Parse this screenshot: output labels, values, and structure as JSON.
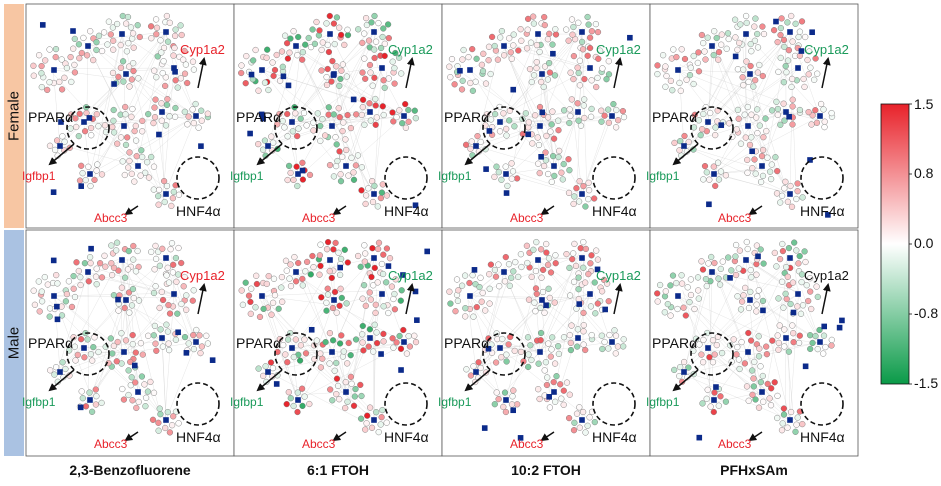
{
  "rows": [
    "Female",
    "Male"
  ],
  "row_colors": [
    "#f7c6a3",
    "#aac2e2"
  ],
  "columns": [
    "2,3-Benzofluorene",
    "6:1 FTOH",
    "10:2 FTOH",
    "PFHxSAm"
  ],
  "hubs": [
    "PPARα",
    "HNF4α"
  ],
  "gene_labels": {
    "cyp": "Cyp1a2",
    "igf": "Igfbp1",
    "abcc": "Abcc3"
  },
  "gene_label_colors": [
    [
      "#e8222a",
      "#e8222a",
      "#e8222a",
      "#1a9a5a",
      "#1a9a5a",
      "#e8222a",
      "#1a9a5a",
      "#1a9a5a",
      "#e8222a",
      "#1a9a5a",
      "#1a9a5a",
      "#e8222a"
    ],
    [
      "#e8222a",
      "#1a9a5a",
      "#e8222a",
      "#1a9a5a",
      "#1a9a5a",
      "#e8222a",
      "#1a9a5a",
      "#1a9a5a",
      "#e8222a",
      "#111111",
      "#1a9a5a",
      "#e8222a"
    ]
  ],
  "intensity": [
    [
      0.55,
      0.95,
      0.6,
      0.55
    ],
    [
      0.6,
      1.0,
      0.65,
      0.75
    ]
  ],
  "colorbar": {
    "ticks": [
      "1.5",
      "0.8",
      "0.0",
      "-0.8",
      "-1.5"
    ],
    "top_color": "#e8222a",
    "mid_color": "#ffffff",
    "bottom_color": "#0a9a48"
  },
  "node_color": "#0b2a8a"
}
